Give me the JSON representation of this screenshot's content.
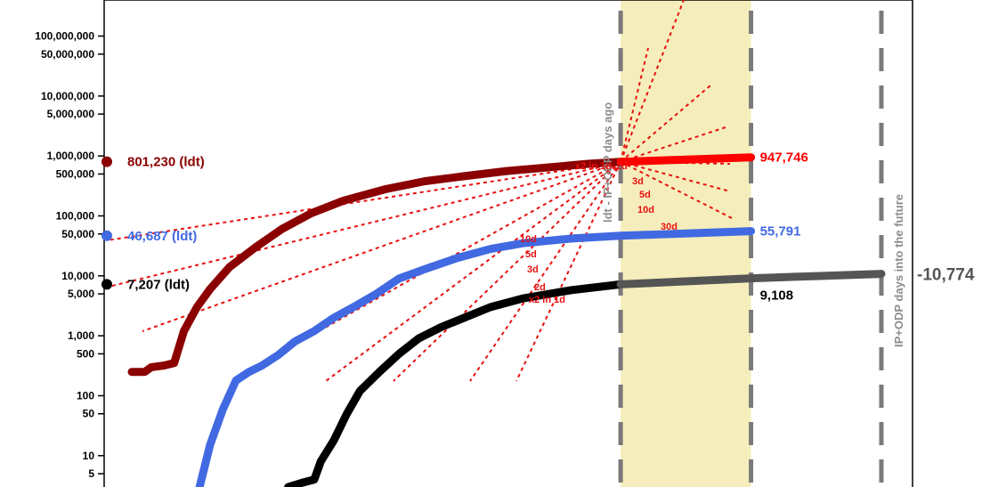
{
  "chart_data": {
    "type": "line",
    "y_scale": "log",
    "ylim": [
      3,
      400000000
    ],
    "y_tick_labels": [
      {
        "label": "100,000,000",
        "value": 100000000
      },
      {
        "label": "50,000,000",
        "value": 50000000
      },
      {
        "label": "10,000,000",
        "value": 10000000
      },
      {
        "label": "5,000,000",
        "value": 5000000
      },
      {
        "label": "1,000,000",
        "value": 1000000
      },
      {
        "label": "500,000",
        "value": 500000
      },
      {
        "label": "100,000",
        "value": 100000
      },
      {
        "label": "50,000",
        "value": 50000
      },
      {
        "label": "10,000",
        "value": 10000
      },
      {
        "label": "5,000",
        "value": 5000
      },
      {
        "label": "1,000",
        "value": 1000
      },
      {
        "label": "500",
        "value": 500
      },
      {
        "label": "100",
        "value": 100
      },
      {
        "label": "50",
        "value": 50
      },
      {
        "label": "10",
        "value": 10
      },
      {
        "label": "5",
        "value": 5
      }
    ],
    "x_domain": [
      0,
      260
    ],
    "band": {
      "from": 150,
      "to": 190,
      "color": "#f5eebc"
    },
    "dashed_lines": [
      150,
      190,
      230
    ],
    "band_label": "ldt - IP+ODP days ago",
    "future_label": "IP+ODP days into the future",
    "doubling_labels": [
      "x2 in 1d",
      "2d",
      "3d",
      "5d",
      "10d",
      "x2 in 1d",
      "2d",
      "3d",
      "5d",
      "10d",
      "30d"
    ],
    "series": [
      {
        "color": "#8b0000",
        "forecast_color": "#ff0000",
        "ldt_label": "801,230 (ldt)",
        "ldt_value": 801230,
        "forecast_label": "947,746",
        "forecast_value": 947746,
        "history": [
          [
            0,
            250
          ],
          [
            4,
            250
          ],
          [
            6,
            300
          ],
          [
            10,
            320
          ],
          [
            13,
            350
          ],
          [
            16,
            1200
          ],
          [
            20,
            3000
          ],
          [
            24,
            6000
          ],
          [
            30,
            14000
          ],
          [
            38,
            30000
          ],
          [
            46,
            60000
          ],
          [
            55,
            110000
          ],
          [
            65,
            180000
          ],
          [
            78,
            280000
          ],
          [
            90,
            380000
          ],
          [
            102,
            460000
          ],
          [
            115,
            560000
          ],
          [
            130,
            660000
          ],
          [
            140,
            740000
          ],
          [
            150,
            801230
          ]
        ],
        "forecast": [
          [
            150,
            801230
          ],
          [
            170,
            870000
          ],
          [
            190,
            947746
          ]
        ]
      },
      {
        "color": "#4169e1",
        "ldt_label": "46,687 (ldt)",
        "ldt_value": 46687,
        "forecast_label": "55,791",
        "forecast_value": 55791,
        "history": [
          [
            20,
            2
          ],
          [
            24,
            15
          ],
          [
            28,
            60
          ],
          [
            32,
            180
          ],
          [
            36,
            250
          ],
          [
            40,
            320
          ],
          [
            45,
            480
          ],
          [
            50,
            800
          ],
          [
            56,
            1200
          ],
          [
            62,
            2000
          ],
          [
            68,
            3000
          ],
          [
            75,
            5000
          ],
          [
            82,
            9000
          ],
          [
            90,
            13000
          ],
          [
            100,
            20000
          ],
          [
            110,
            28000
          ],
          [
            120,
            35000
          ],
          [
            135,
            42000
          ],
          [
            150,
            46687
          ]
        ],
        "forecast": [
          [
            150,
            46687
          ],
          [
            170,
            51000
          ],
          [
            190,
            55791
          ]
        ]
      },
      {
        "color": "#000000",
        "forecast_color": "#555555",
        "ldt_label": "7,207 (ldt)",
        "ldt_value": 7207,
        "forecast_label": "9,108",
        "forecast_value": 9108,
        "far_label": "-10,774",
        "far_value": 10774,
        "history": [
          [
            48,
            3
          ],
          [
            52,
            3.5
          ],
          [
            56,
            4
          ],
          [
            58,
            8
          ],
          [
            62,
            18
          ],
          [
            66,
            50
          ],
          [
            70,
            120
          ],
          [
            76,
            250
          ],
          [
            82,
            500
          ],
          [
            88,
            900
          ],
          [
            95,
            1400
          ],
          [
            102,
            2000
          ],
          [
            110,
            3000
          ],
          [
            120,
            4200
          ],
          [
            135,
            5800
          ],
          [
            150,
            7207
          ]
        ],
        "forecast": [
          [
            150,
            7207
          ],
          [
            170,
            8100
          ],
          [
            190,
            9108
          ]
        ],
        "far_forecast": [
          [
            190,
            9108
          ],
          [
            210,
            9900
          ],
          [
            230,
            10774
          ]
        ]
      }
    ]
  }
}
